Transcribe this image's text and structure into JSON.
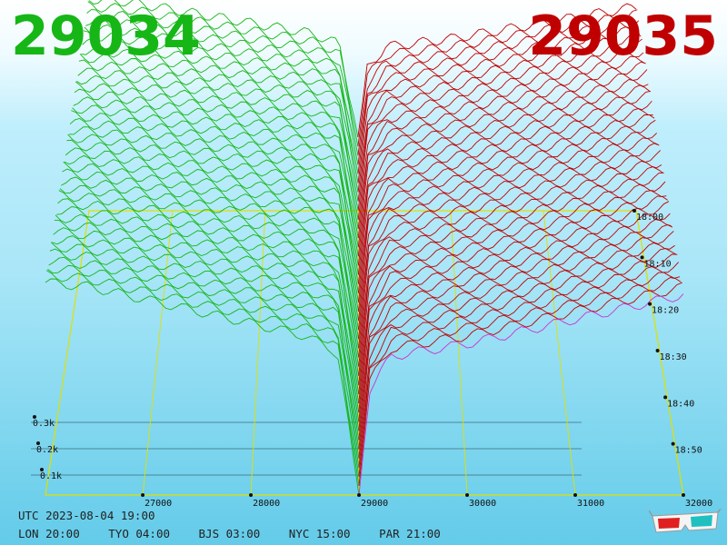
{
  "header": {
    "bid": "29034",
    "ask": "29035"
  },
  "colors": {
    "bid": "#17b617",
    "ask": "#c00000",
    "mid": "#cc33cc",
    "frame": "#e0e000"
  },
  "chart_data": {
    "type": "line",
    "title": "",
    "x_axis": {
      "ticks": [
        27000,
        28000,
        29000,
        30000,
        31000,
        32000
      ],
      "labels": [
        "27000",
        "28000",
        "29000",
        "30000",
        "31000",
        "32000"
      ],
      "range": [
        26100,
        32000
      ]
    },
    "z_axis": {
      "labels": [
        "0.1k",
        "0.2k",
        "0.3k"
      ],
      "values": [
        100,
        200,
        300
      ]
    },
    "time_axis": {
      "labels": [
        "18:00",
        "18:10",
        "18:20",
        "18:30",
        "18:40",
        "18:50"
      ]
    },
    "bid_profile": {
      "x": [
        26100,
        26500,
        27000,
        27500,
        28000,
        28500,
        28800,
        29000
      ],
      "depth": [
        260,
        255,
        240,
        225,
        210,
        195,
        175,
        0
      ]
    },
    "ask_profile": {
      "x": [
        29000,
        29100,
        29300,
        30000,
        30500,
        31000,
        31500,
        32000
      ],
      "depth": [
        0,
        130,
        170,
        185,
        200,
        215,
        230,
        245
      ]
    },
    "snapshots": 40
  },
  "footer": {
    "utc": "UTC 2023-08-04 19:00",
    "zones": [
      "LON 20:00",
      "TYO 04:00",
      "BJS 03:00",
      "NYC 15:00",
      "PAR 21:00"
    ]
  },
  "icons": {
    "glasses": "3d-glasses-icon"
  }
}
